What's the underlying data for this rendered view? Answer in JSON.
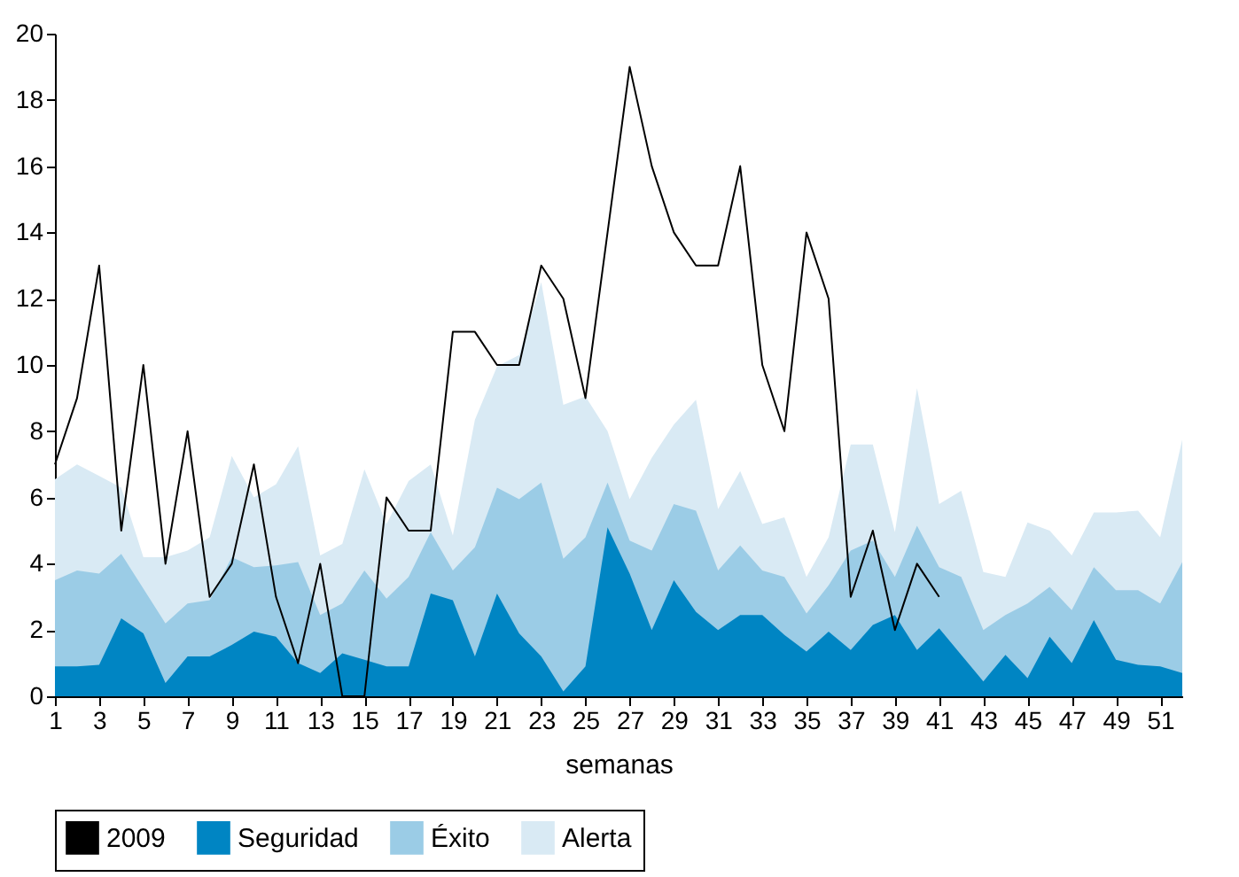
{
  "chart_data": {
    "type": "area",
    "xlabel": "semanas",
    "x": [
      1,
      2,
      3,
      4,
      5,
      6,
      7,
      8,
      9,
      10,
      11,
      12,
      13,
      14,
      15,
      16,
      17,
      18,
      19,
      20,
      21,
      22,
      23,
      24,
      25,
      26,
      27,
      28,
      29,
      30,
      31,
      32,
      33,
      34,
      35,
      36,
      37,
      38,
      39,
      40,
      41,
      42,
      43,
      44,
      45,
      46,
      47,
      48,
      49,
      50,
      51,
      52
    ],
    "xlim": [
      1,
      52
    ],
    "xticks": [
      1,
      3,
      5,
      7,
      9,
      11,
      13,
      15,
      17,
      19,
      21,
      23,
      25,
      27,
      29,
      31,
      33,
      35,
      37,
      39,
      41,
      43,
      45,
      47,
      49,
      51
    ],
    "ylim": [
      0,
      20
    ],
    "yticks": [
      0,
      2,
      4,
      6,
      8,
      10,
      12,
      14,
      16,
      18,
      20
    ],
    "grid": false,
    "legend": "bottom",
    "series": [
      {
        "name": "2009",
        "type": "line",
        "color": "#000000",
        "x": [
          1,
          2,
          3,
          4,
          5,
          6,
          7,
          8,
          9,
          10,
          11,
          12,
          13,
          14,
          15,
          16,
          17,
          18,
          19,
          20,
          21,
          22,
          23,
          24,
          25,
          26,
          27,
          28,
          29,
          30,
          31,
          32,
          33,
          34,
          35,
          36,
          37,
          38,
          39,
          40,
          41
        ],
        "values": [
          7,
          9,
          13,
          5,
          10,
          4,
          8,
          3,
          4,
          7,
          3,
          1,
          4,
          0,
          0,
          6,
          5,
          5,
          11,
          11,
          10,
          10,
          13,
          12,
          9,
          14,
          19,
          16,
          14,
          13,
          13,
          16,
          10,
          8,
          14,
          12,
          3,
          5,
          2,
          4,
          3
        ]
      },
      {
        "name": "Seguridad",
        "color": "#0085c3",
        "values": [
          0.9,
          0.9,
          0.95,
          2.35,
          1.9,
          0.4,
          1.2,
          1.2,
          1.55,
          1.95,
          1.8,
          1.0,
          0.7,
          1.3,
          1.1,
          0.9,
          0.9,
          3.1,
          2.9,
          1.2,
          3.1,
          1.9,
          1.2,
          0.15,
          0.9,
          5.1,
          3.7,
          2.0,
          3.5,
          2.55,
          2.0,
          2.45,
          2.45,
          1.85,
          1.35,
          1.95,
          1.4,
          2.15,
          2.45,
          1.4,
          2.05,
          1.25,
          0.45,
          1.25,
          0.55,
          1.8,
          1.0,
          2.3,
          1.1,
          0.95,
          0.9,
          0.7
        ]
      },
      {
        "name": "Éxito",
        "color": "#9bcce6",
        "values": [
          3.5,
          3.8,
          3.7,
          4.3,
          3.25,
          2.2,
          2.8,
          2.9,
          4.2,
          3.9,
          3.95,
          4.05,
          2.45,
          2.8,
          3.8,
          2.95,
          3.6,
          4.95,
          3.8,
          4.5,
          6.3,
          5.95,
          6.45,
          4.15,
          4.8,
          6.45,
          4.7,
          4.4,
          5.8,
          5.6,
          3.8,
          4.55,
          3.8,
          3.6,
          2.5,
          3.35,
          4.4,
          4.7,
          3.6,
          5.15,
          3.9,
          3.6,
          2.0,
          2.45,
          2.8,
          3.3,
          2.6,
          3.9,
          3.2,
          3.2,
          2.8,
          4.05
        ]
      },
      {
        "name": "Alerta",
        "color": "#d9eaf4",
        "values": [
          6.55,
          7.0,
          6.65,
          6.3,
          4.2,
          4.2,
          4.4,
          4.8,
          7.25,
          6.0,
          6.4,
          7.55,
          4.25,
          4.6,
          6.85,
          5.2,
          6.5,
          7.0,
          4.85,
          8.35,
          9.95,
          10.3,
          12.5,
          8.8,
          9.05,
          8.0,
          5.95,
          7.2,
          8.2,
          8.95,
          5.65,
          6.8,
          5.2,
          5.4,
          3.6,
          4.8,
          7.6,
          7.6,
          4.95,
          9.3,
          5.8,
          6.2,
          3.75,
          3.6,
          5.25,
          5.0,
          4.25,
          5.55,
          5.55,
          5.6,
          4.8,
          7.75
        ]
      }
    ]
  }
}
